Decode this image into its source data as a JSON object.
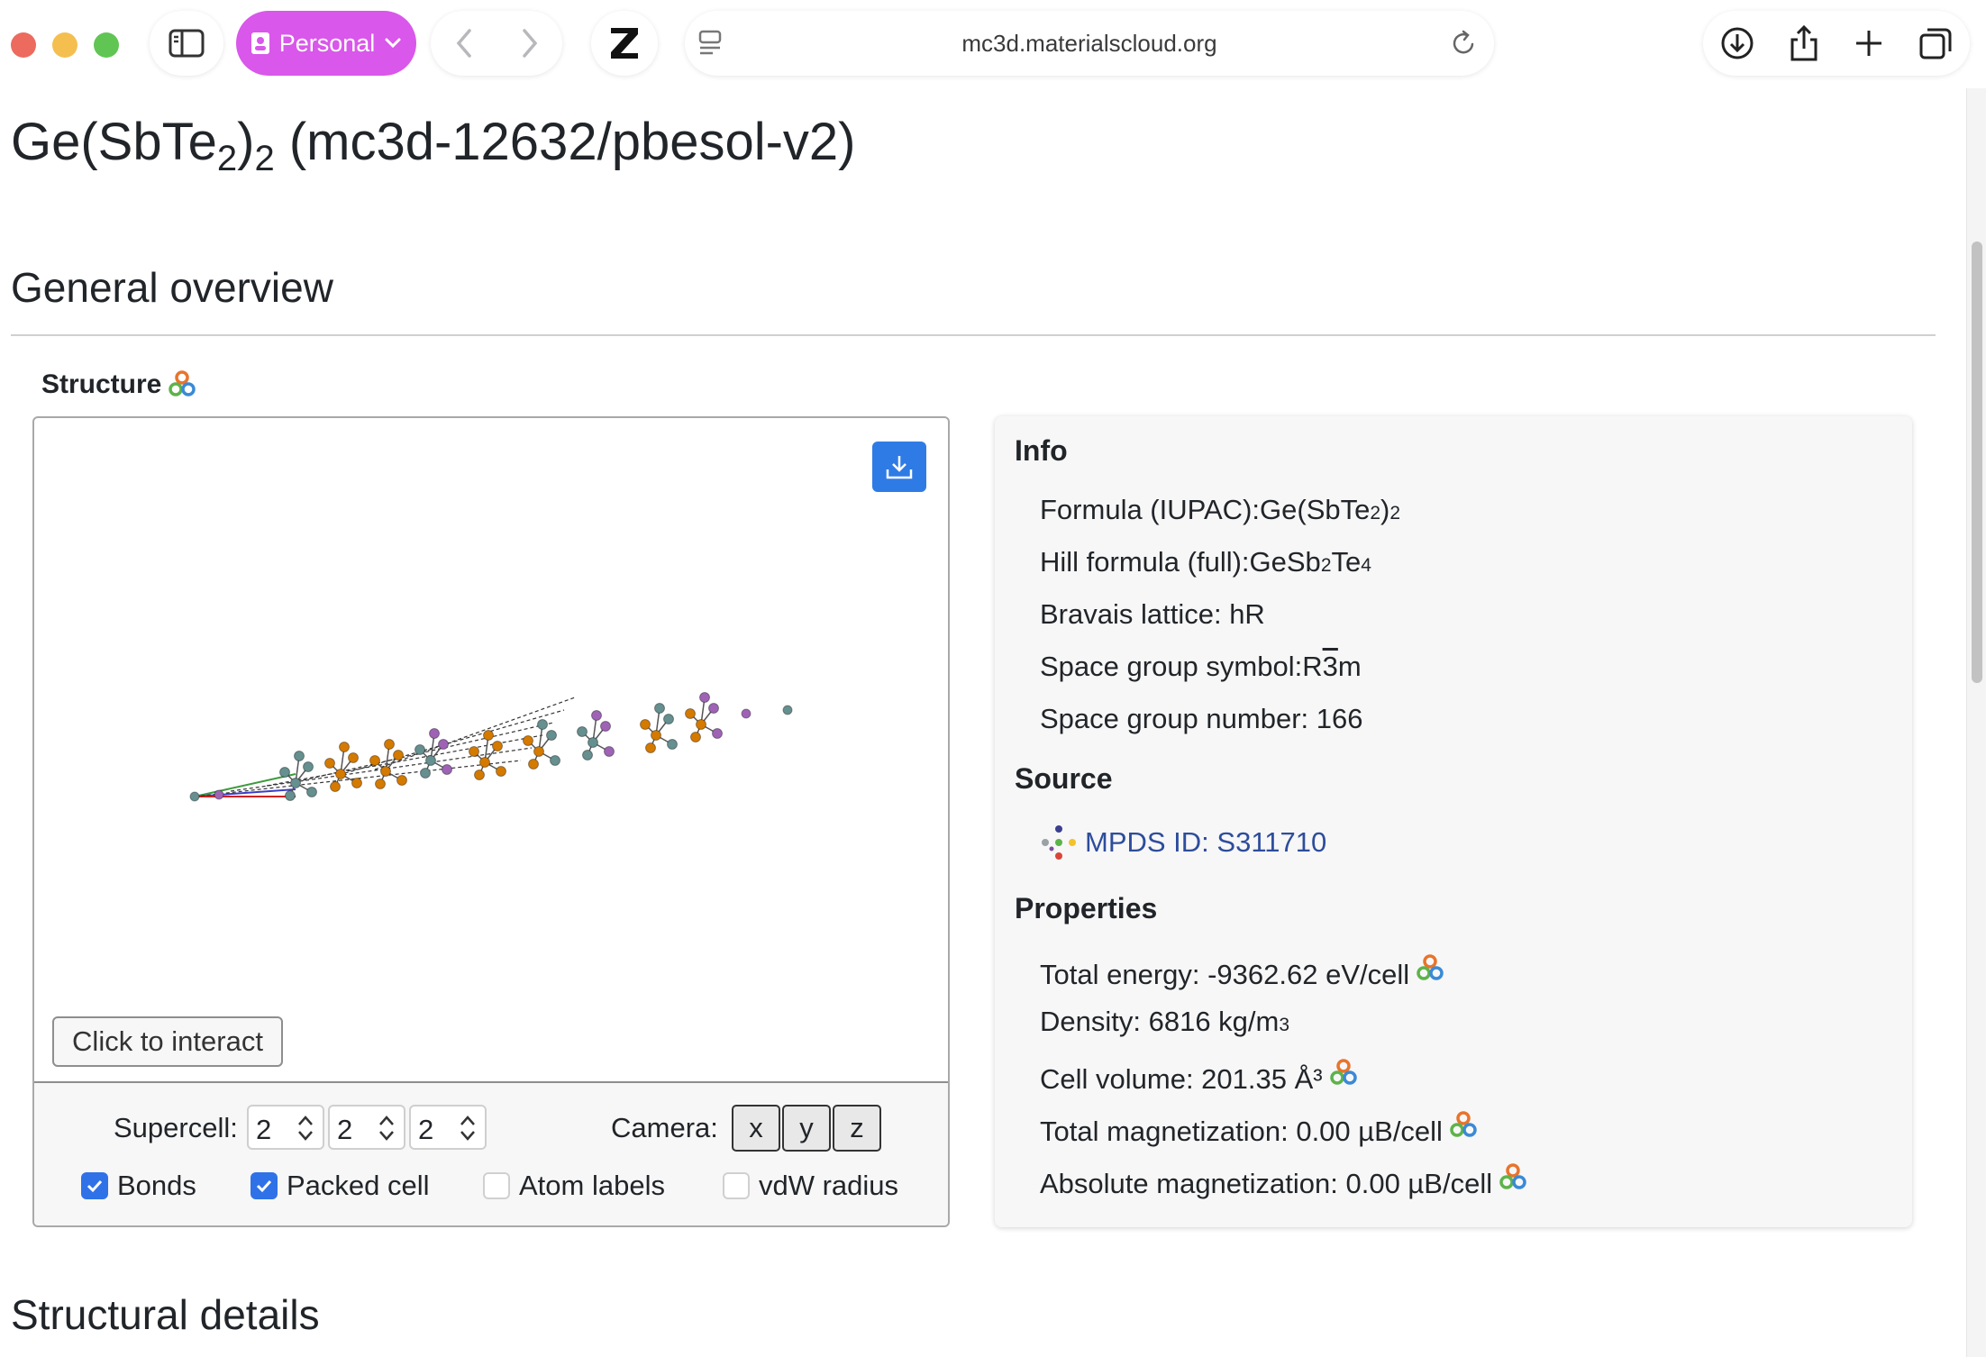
{
  "browser": {
    "profile_label": "Personal",
    "url": "mc3d.materialscloud.org",
    "z_label": "Z"
  },
  "page": {
    "title_main": "Ge(SbTe",
    "title_sub1": "2",
    "title_mid": ")",
    "title_sub2": "2",
    "title_id": " (mc3d-12632/pbesol-v2)",
    "general_overview": "General overview",
    "structure_label": "Structure",
    "structural_details": "Structural details"
  },
  "viewer": {
    "interact_label": "Click to interact",
    "supercell_label": "Supercell:",
    "supercell": [
      "2",
      "2",
      "2"
    ],
    "camera_label": "Camera:",
    "camera_buttons": [
      "x",
      "y",
      "z"
    ],
    "options": [
      {
        "label": "Bonds",
        "checked": true
      },
      {
        "label": "Packed cell",
        "checked": true
      },
      {
        "label": "Atom labels",
        "checked": false
      },
      {
        "label": "vdW radius",
        "checked": false
      }
    ],
    "atom_colors": {
      "Ge": "#668f8f",
      "Sb": "#9e63b5",
      "Te": "#d47a00"
    }
  },
  "info": {
    "info_heading": "Info",
    "formula_iupac_label": "Formula (IUPAC): ",
    "formula_iupac": {
      "a": "Ge(SbTe",
      "s1": "2",
      "b": ")",
      "s2": "2"
    },
    "hill_label": "Hill formula (full): ",
    "hill": {
      "a": "GeSb",
      "s1": "2",
      "b": "Te",
      "s2": "4"
    },
    "bravais": "Bravais lattice: hR",
    "sg_symbol_label": "Space group symbol: ",
    "sg_symbol": {
      "a": "R",
      "bar": "3",
      "b": "m"
    },
    "sg_number": "Space group number: 166",
    "source_heading": "Source",
    "mpds_link": "MPDS ID: S311710",
    "properties_heading": "Properties",
    "total_energy": "Total energy: -9362.62 eV/cell",
    "density_a": "Density: 6816 kg/m",
    "density_sup": "3",
    "cell_volume": "Cell volume: 201.35 Å³",
    "total_mag": "Total magnetization: 0.00 µB/cell",
    "abs_mag": "Absolute magnetization: 0.00 µB/cell"
  },
  "colors": {
    "profile_accent": "#d957ea",
    "primary_blue": "#2f7be5",
    "link": "#2d4d9c"
  }
}
